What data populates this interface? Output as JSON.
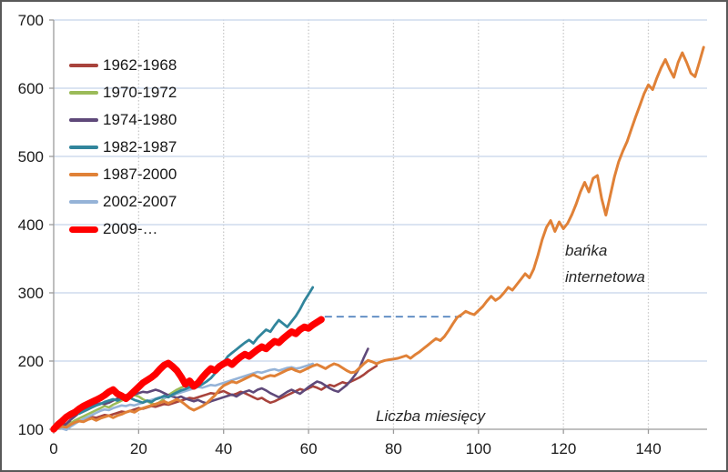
{
  "chart_data": {
    "type": "line",
    "title": "",
    "xlabel": "Liczba miesięcy",
    "ylabel": "",
    "xlim": [
      0,
      154
    ],
    "ylim": [
      100,
      700
    ],
    "x_ticks": [
      0,
      20,
      40,
      60,
      80,
      100,
      120,
      140
    ],
    "y_ticks": [
      100,
      200,
      300,
      400,
      500,
      600,
      700
    ],
    "grid": {
      "horizontal": true,
      "vertical": "dotted",
      "h_color": "#c5d4eb",
      "v_color": "#c6c6c6"
    },
    "axis_color": "#9b9b9b",
    "label_color": "#1a1a1a",
    "legend_position": "top-left-inside",
    "reference_line": {
      "y": 265,
      "x_start": 63.8,
      "x_end": 96,
      "color": "#4f81bd",
      "style": "dashed"
    },
    "annotations": [
      {
        "text": "bańka internetowa",
        "near_series": "1987-2000"
      },
      {
        "text": "Liczba miesięcy",
        "role": "x-axis-label"
      }
    ],
    "series": [
      {
        "name": "1962-1968",
        "color": "#a8433c",
        "width": 2.6,
        "x_start": 0,
        "x_step": 1,
        "values": [
          100,
          103,
          106,
          108,
          110,
          109,
          112,
          114,
          116,
          118,
          117,
          119,
          121,
          120,
          122,
          124,
          126,
          125,
          127,
          129,
          131,
          130,
          132,
          134,
          133,
          135,
          137,
          136,
          138,
          140,
          142,
          144,
          146,
          145,
          147,
          149,
          151,
          153,
          152,
          154,
          156,
          153,
          150,
          152,
          155,
          153,
          150,
          147,
          144,
          146,
          142,
          139,
          141,
          144,
          147,
          150,
          153,
          156,
          159,
          157,
          160,
          163,
          161,
          158,
          162,
          165,
          163,
          166,
          169,
          167,
          170,
          173,
          176,
          180,
          185,
          189,
          193
        ]
      },
      {
        "name": "1970-1972",
        "color": "#9bbb59",
        "width": 2.6,
        "x_start": 0,
        "x_step": 1,
        "values": [
          100,
          103,
          101,
          105,
          109,
          113,
          116,
          119,
          122,
          125,
          128,
          131,
          134,
          132,
          136,
          139,
          142,
          145,
          148,
          150,
          148,
          144,
          141,
          138,
          136,
          140,
          145,
          150,
          154,
          158,
          161,
          164,
          167
        ]
      },
      {
        "name": "1974-1980",
        "color": "#5f497a",
        "width": 2.6,
        "x_start": 0,
        "x_step": 1,
        "values": [
          100,
          104,
          103,
          108,
          114,
          119,
          124,
          128,
          131,
          134,
          136,
          138,
          137,
          139,
          142,
          145,
          148,
          150,
          149,
          151,
          153,
          155,
          154,
          156,
          158,
          156,
          153,
          150,
          148,
          146,
          148,
          145,
          143,
          141,
          143,
          140,
          138,
          141,
          143,
          145,
          147,
          149,
          151,
          148,
          152,
          155,
          157,
          154,
          158,
          160,
          157,
          153,
          150,
          147,
          151,
          155,
          158,
          155,
          152,
          157,
          162,
          166,
          170,
          168,
          164,
          160,
          157,
          155,
          160,
          165,
          172,
          180,
          190,
          205,
          218
        ]
      },
      {
        "name": "1982-1987",
        "color": "#31859c",
        "width": 2.8,
        "x_start": 0,
        "x_step": 1,
        "values": [
          100,
          104,
          110,
          116,
          121,
          124,
          123,
          126,
          129,
          132,
          135,
          137,
          140,
          142,
          144,
          142,
          145,
          143,
          146,
          143,
          141,
          139,
          142,
          140,
          144,
          146,
          149,
          147,
          151,
          154,
          157,
          159,
          162,
          160,
          163,
          166,
          170,
          175,
          182,
          190,
          198,
          207,
          212,
          217,
          222,
          227,
          231,
          226,
          234,
          240,
          246,
          243,
          252,
          260,
          255,
          250,
          258,
          266,
          276,
          288,
          298,
          308
        ]
      },
      {
        "name": "1987-2000",
        "color": "#e08137",
        "width": 3,
        "x_start": 0,
        "x_step": 1,
        "values": [
          100,
          102,
          104,
          103,
          107,
          110,
          112,
          111,
          114,
          116,
          113,
          116,
          118,
          120,
          117,
          120,
          122,
          125,
          127,
          125,
          129,
          131,
          133,
          135,
          137,
          139,
          141,
          138,
          141,
          144,
          141,
          136,
          131,
          128,
          131,
          134,
          138,
          144,
          150,
          158,
          164,
          167,
          170,
          168,
          171,
          174,
          177,
          180,
          177,
          174,
          177,
          179,
          178,
          181,
          184,
          187,
          189,
          186,
          184,
          187,
          190,
          193,
          195,
          192,
          189,
          193,
          196,
          194,
          190,
          186,
          183,
          184,
          190,
          196,
          201,
          199,
          196,
          199,
          201,
          202,
          203,
          204,
          206,
          208,
          204,
          209,
          213,
          218,
          223,
          228,
          233,
          230,
          236,
          245,
          255,
          264,
          268,
          273,
          270,
          268,
          274,
          280,
          288,
          295,
          289,
          293,
          300,
          308,
          304,
          312,
          320,
          328,
          322,
          335,
          355,
          378,
          396,
          406,
          390,
          404,
          394,
          402,
          415,
          430,
          448,
          462,
          448,
          468,
          472,
          438,
          414,
          442,
          470,
          492,
          508,
          522,
          540,
          558,
          575,
          592,
          605,
          598,
          615,
          630,
          642,
          628,
          616,
          638,
          652,
          638,
          622,
          617,
          638,
          660
        ]
      },
      {
        "name": "2002-2007",
        "color": "#95b3d7",
        "width": 2.6,
        "x_start": 0,
        "x_step": 1,
        "values": [
          100,
          103,
          101,
          99,
          104,
          108,
          112,
          115,
          118,
          121,
          124,
          127,
          129,
          128,
          131,
          133,
          135,
          134,
          136,
          135,
          137,
          139,
          141,
          143,
          145,
          147,
          146,
          148,
          150,
          152,
          154,
          156,
          158,
          160,
          162,
          161,
          163,
          165,
          164,
          166,
          168,
          170,
          172,
          174,
          176,
          178,
          180,
          182,
          184,
          183,
          185,
          187,
          188,
          186,
          188,
          190,
          191,
          189,
          190,
          192,
          194,
          196
        ]
      },
      {
        "name": "2009-…",
        "color": "#ff0000",
        "width": 7.5,
        "x_start": 0,
        "x_step": 1,
        "values": [
          100,
          107,
          112,
          118,
          122,
          125,
          130,
          134,
          137,
          140,
          143,
          146,
          150,
          155,
          158,
          152,
          149,
          145,
          150,
          156,
          162,
          168,
          172,
          176,
          181,
          188,
          194,
          197,
          192,
          186,
          177,
          166,
          171,
          163,
          168,
          176,
          183,
          189,
          186,
          192,
          196,
          199,
          195,
          201,
          206,
          210,
          207,
          212,
          217,
          221,
          218,
          224,
          229,
          227,
          233,
          238,
          243,
          240,
          246,
          250,
          248,
          253,
          257,
          261
        ]
      }
    ]
  },
  "legend": {
    "items": [
      {
        "label": "1962-1968"
      },
      {
        "label": "1970-1972"
      },
      {
        "label": "1974-1980"
      },
      {
        "label": "1982-1987"
      },
      {
        "label": "1987-2000"
      },
      {
        "label": "2002-2007"
      },
      {
        "label": "2009-…"
      }
    ]
  }
}
